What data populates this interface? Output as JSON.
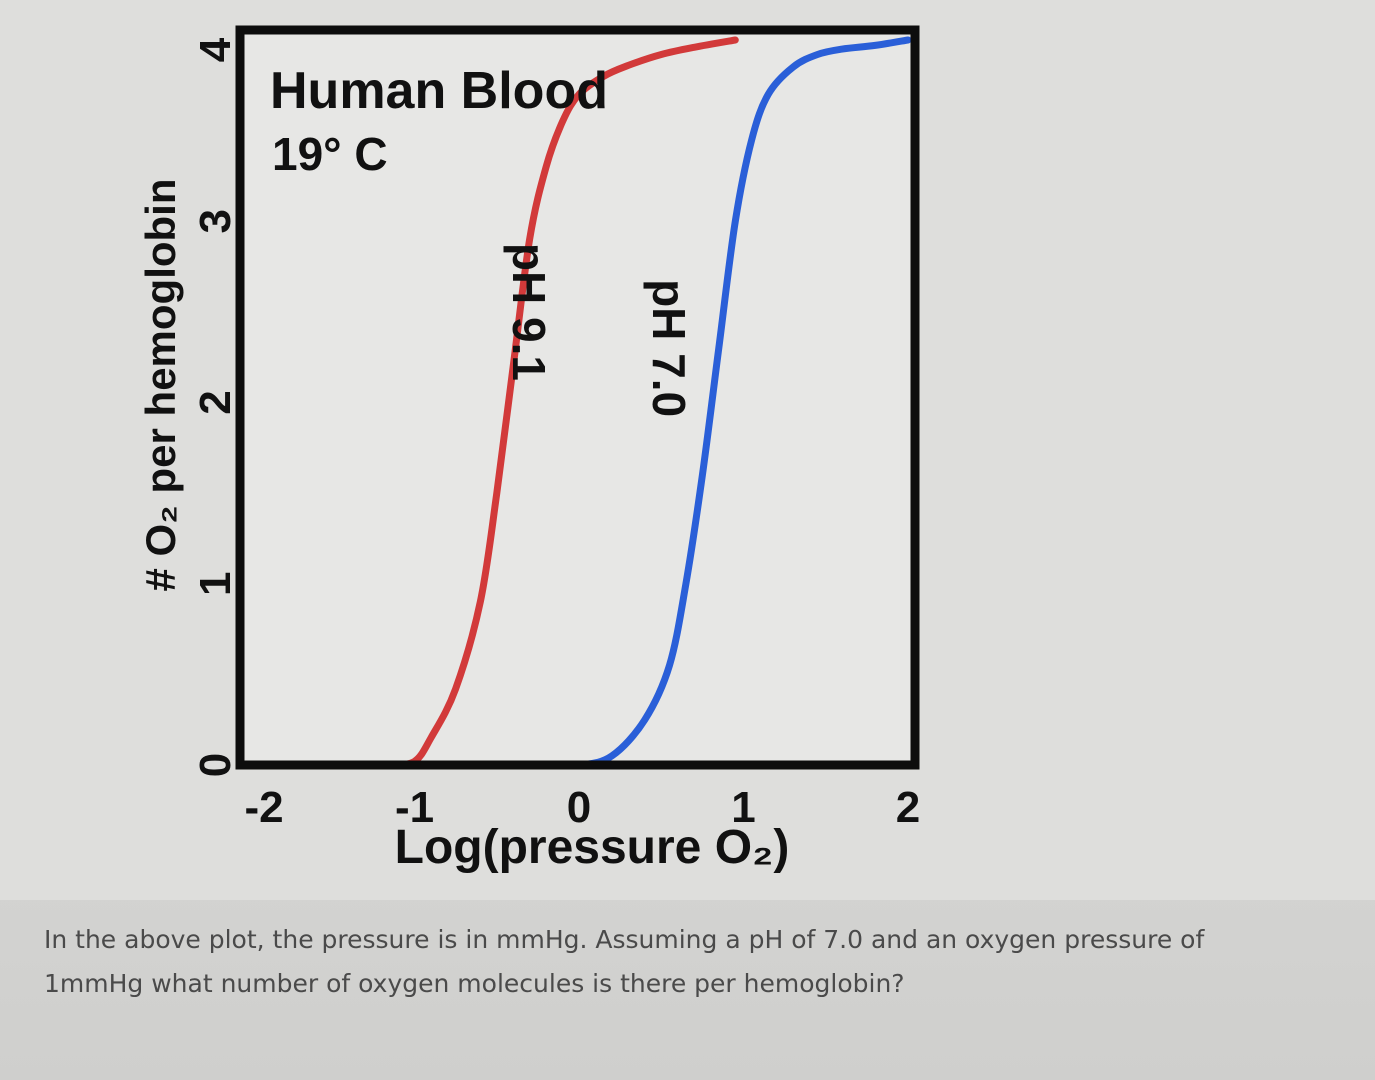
{
  "chart_data": {
    "type": "line",
    "title": "Human Blood",
    "subtitle": "19° C",
    "xlabel": "Log(pressure O₂)",
    "ylabel": "# O₂ per hemoglobin",
    "xlim": [
      -2,
      2
    ],
    "ylim": [
      0,
      4
    ],
    "x_ticks": [
      "-2",
      "-1",
      "0",
      "1",
      "2"
    ],
    "y_ticks": [
      "0",
      "1",
      "2",
      "3",
      "4"
    ],
    "grid": false,
    "series": [
      {
        "name": "pH 9.1",
        "color": "#d23a3a",
        "x": [
          -1.15,
          -1.0,
          -0.9,
          -0.75,
          -0.6,
          -0.5,
          -0.4,
          -0.3,
          -0.2,
          -0.1,
          0.0,
          0.15,
          0.3,
          0.5,
          0.7,
          0.95
        ],
        "y": [
          0.0,
          0.02,
          0.15,
          0.42,
          0.9,
          1.5,
          2.2,
          2.9,
          3.3,
          3.55,
          3.7,
          3.8,
          3.86,
          3.92,
          3.96,
          4.0
        ]
      },
      {
        "name": "pH 7.0",
        "color": "#2a5fd8",
        "x": [
          -0.25,
          0.0,
          0.2,
          0.4,
          0.55,
          0.65,
          0.75,
          0.85,
          0.95,
          1.05,
          1.15,
          1.3,
          1.45,
          1.6,
          1.8,
          2.0
        ],
        "y": [
          0.0,
          0.0,
          0.05,
          0.25,
          0.55,
          1.0,
          1.6,
          2.3,
          3.0,
          3.45,
          3.7,
          3.85,
          3.92,
          3.95,
          3.97,
          4.0
        ]
      }
    ]
  },
  "question": {
    "line1": "In the above plot, the pressure is in mmHg. Assuming a pH of 7.0 and an oxygen pressure of",
    "line2": "1mmHg what number of oxygen molecules is there per hemoglobin?"
  }
}
